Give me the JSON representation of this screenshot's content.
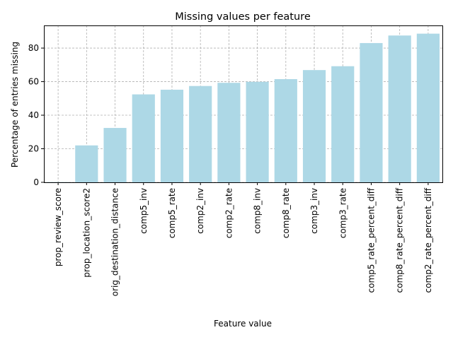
{
  "chart_data": {
    "type": "bar",
    "title": "Missing values per feature",
    "xlabel": "Feature value",
    "ylabel": "Percentage of entries missing",
    "categories": [
      "prop_review_score",
      "prop_location_score2",
      "orig_destination_distance",
      "comp5_inv",
      "comp5_rate",
      "comp2_inv",
      "comp2_rate",
      "comp8_inv",
      "comp8_rate",
      "comp3_inv",
      "comp3_rate",
      "comp5_rate_percent_diff",
      "comp8_rate_percent_diff",
      "comp2_rate_percent_diff"
    ],
    "values": [
      0.15,
      22.0,
      32.4,
      52.4,
      55.2,
      57.4,
      59.3,
      59.9,
      61.5,
      66.9,
      69.2,
      83.0,
      87.5,
      88.6
    ],
    "ylim": [
      0,
      93.5
    ],
    "yticks": [
      0,
      20,
      40,
      60,
      80
    ],
    "grid": true,
    "bar_color": "#add8e6",
    "grid_color": "#b0b0b0"
  }
}
